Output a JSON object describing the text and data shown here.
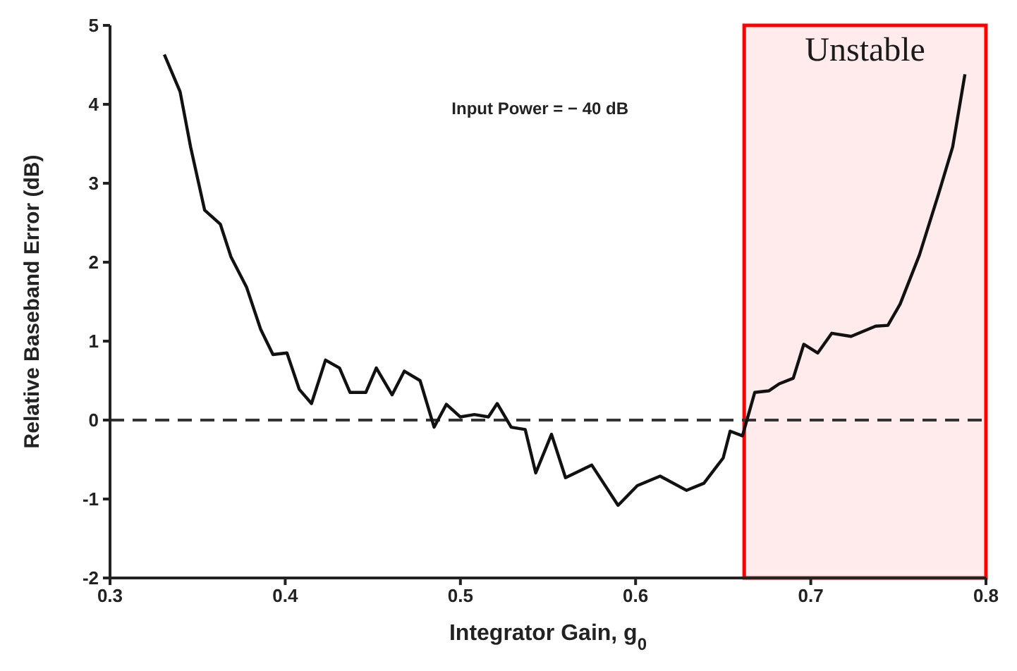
{
  "chart_data": {
    "type": "line",
    "xlabel": "Integrator Gain, g$_{0}$",
    "ylabel": "Relative Baseband Error (dB)",
    "annotations": [
      "Input Power = − 40 dB"
    ],
    "xlim": [
      0.3,
      0.8
    ],
    "xticks": [
      0.3,
      0.4,
      0.5,
      0.6,
      0.7,
      0.8
    ],
    "ylim": [
      -2,
      5
    ],
    "yticks": [
      -2,
      -1,
      0,
      1,
      2,
      3,
      4,
      5
    ],
    "grid": false,
    "legend": false,
    "marker": "none",
    "line_style": "solid",
    "ref_lines": [
      {
        "axis": "y",
        "value": 0,
        "line_style": "dashed",
        "color": "#333333"
      }
    ],
    "bands": [
      {
        "axis": "x",
        "from": 0.662,
        "to": 0.8,
        "label": "Unstable",
        "color": "#ff0000"
      }
    ],
    "series": [
      {
        "color": "#111111",
        "x": [
          0.331,
          0.34,
          0.346,
          0.354,
          0.363,
          0.369,
          0.378,
          0.386,
          0.393,
          0.401,
          0.408,
          0.415,
          0.423,
          0.431,
          0.437,
          0.446,
          0.452,
          0.461,
          0.468,
          0.477,
          0.485,
          0.492,
          0.5,
          0.508,
          0.516,
          0.521,
          0.529,
          0.537,
          0.543,
          0.552,
          0.56,
          0.575,
          0.59,
          0.601,
          0.614,
          0.629,
          0.639,
          0.65,
          0.654,
          0.661,
          0.668,
          0.676,
          0.682,
          0.69,
          0.696,
          0.704,
          0.712,
          0.723,
          0.737,
          0.744,
          0.751,
          0.762,
          0.773,
          0.781,
          0.788
        ],
        "values": [
          4.63,
          4.16,
          3.46,
          2.66,
          2.48,
          2.07,
          1.68,
          1.15,
          0.83,
          0.85,
          0.39,
          0.21,
          0.76,
          0.66,
          0.35,
          0.35,
          0.66,
          0.32,
          0.62,
          0.5,
          -0.09,
          0.2,
          0.04,
          0.07,
          0.04,
          0.21,
          -0.09,
          -0.12,
          -0.67,
          -0.18,
          -0.73,
          -0.57,
          -1.08,
          -0.83,
          -0.71,
          -0.89,
          -0.8,
          -0.48,
          -0.14,
          -0.2,
          0.35,
          0.37,
          0.46,
          0.53,
          0.96,
          0.85,
          1.1,
          1.06,
          1.19,
          1.2,
          1.47,
          2.09,
          2.87,
          3.46,
          4.38
        ]
      }
    ]
  }
}
